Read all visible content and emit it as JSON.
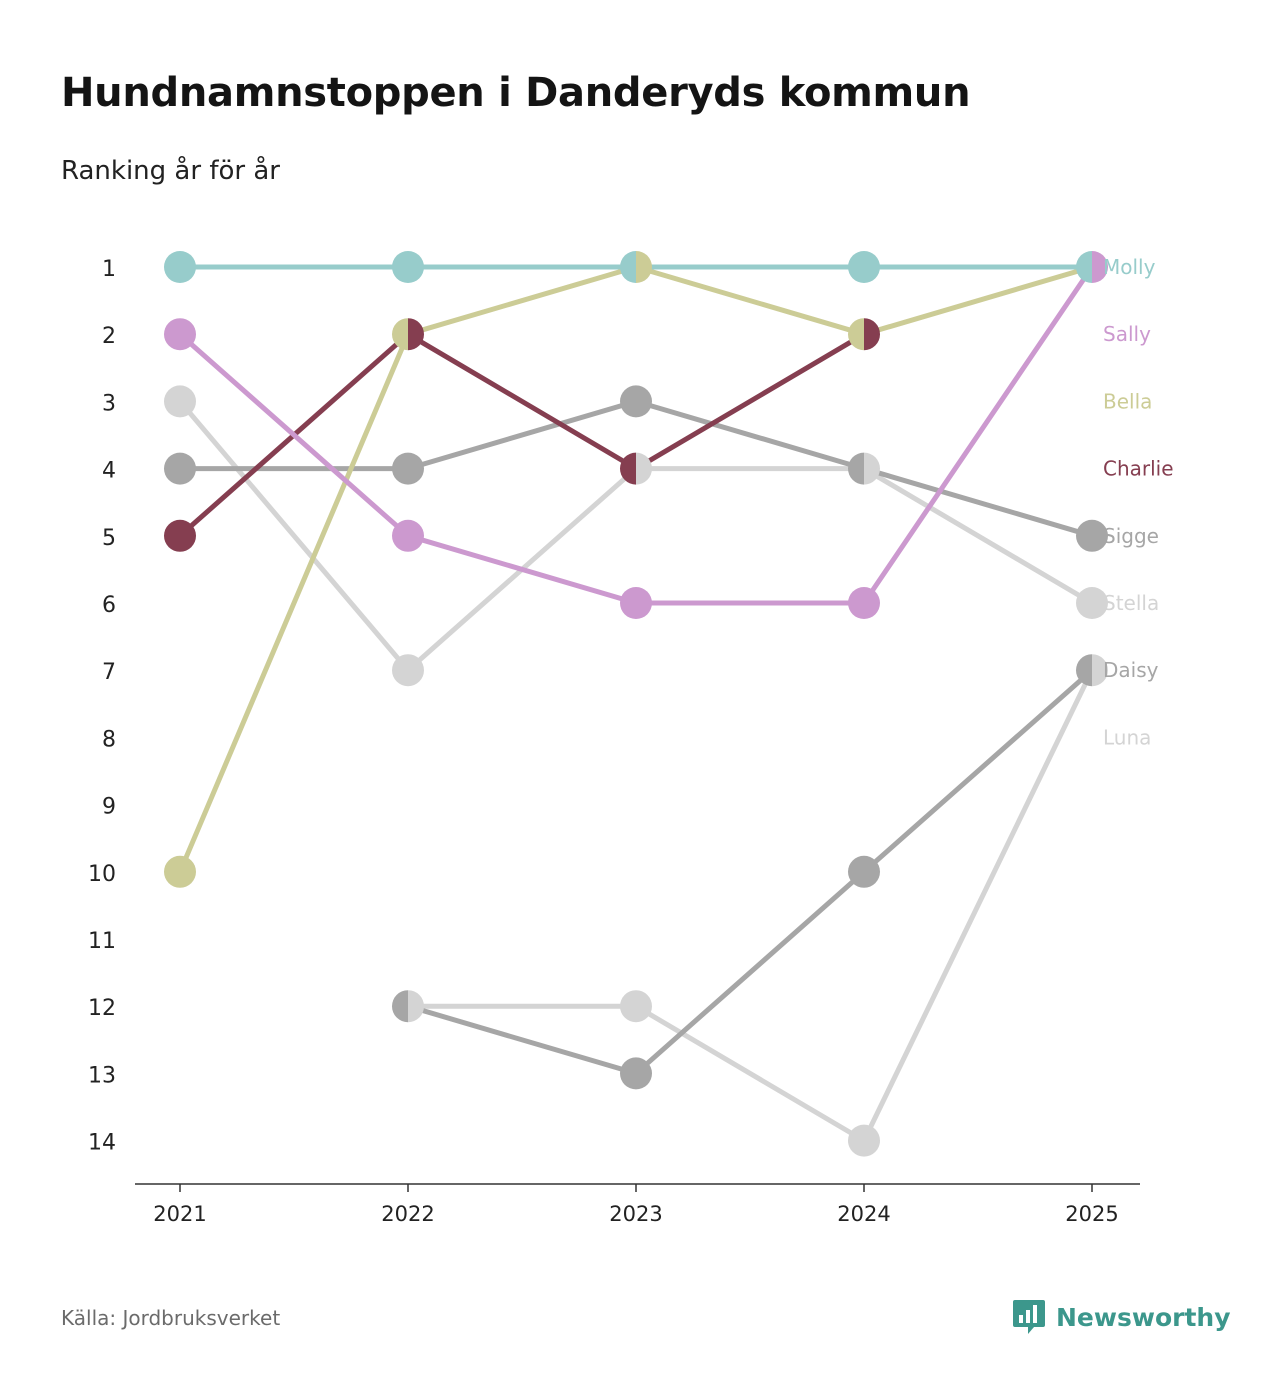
{
  "header": {
    "title": "Hundnamnstoppen i Danderyds kommun",
    "subtitle": "Ranking år för år"
  },
  "footer": {
    "source": "Källa: Jordbruksverket",
    "brand": "Newsworthy",
    "brand_icon": "newsworthy-logo-icon"
  },
  "chart_data": {
    "type": "line",
    "title": "Hundnamnstoppen i Danderyds kommun",
    "subtitle": "Ranking år för år",
    "xlabel": "",
    "ylabel": "",
    "x": [
      "2021",
      "2022",
      "2023",
      "2024",
      "2025"
    ],
    "y_ticks": [
      "1",
      "2",
      "3",
      "4",
      "5",
      "6",
      "7",
      "8",
      "9",
      "10",
      "11",
      "12",
      "13",
      "14"
    ],
    "ylim": [
      1,
      14
    ],
    "y_inverted": true,
    "grid": false,
    "legend_placement": "right",
    "series": [
      {
        "name": "Molly",
        "color": "#97cccb",
        "values": [
          1,
          1,
          1,
          1,
          1
        ]
      },
      {
        "name": "Sally",
        "color": "#cc99cf",
        "values": [
          2,
          5,
          6,
          6,
          1
        ]
      },
      {
        "name": "Bella",
        "color": "#cccc96",
        "values": [
          10,
          2,
          1,
          2,
          1
        ]
      },
      {
        "name": "Charlie",
        "color": "#853e50",
        "values": [
          5,
          2,
          4,
          2,
          null
        ]
      },
      {
        "name": "Sigge",
        "color": "#a6a6a6",
        "values": [
          4,
          4,
          3,
          4,
          5
        ]
      },
      {
        "name": "Stella",
        "color": "#d4d4d4",
        "values": [
          3,
          7,
          4,
          4,
          6
        ]
      },
      {
        "name": "Daisy",
        "color": "#a6a6a6",
        "values": [
          null,
          12,
          13,
          10,
          7
        ]
      },
      {
        "name": "Luna",
        "color": "#d4d4d4",
        "values": [
          null,
          12,
          12,
          14,
          7
        ]
      }
    ]
  }
}
